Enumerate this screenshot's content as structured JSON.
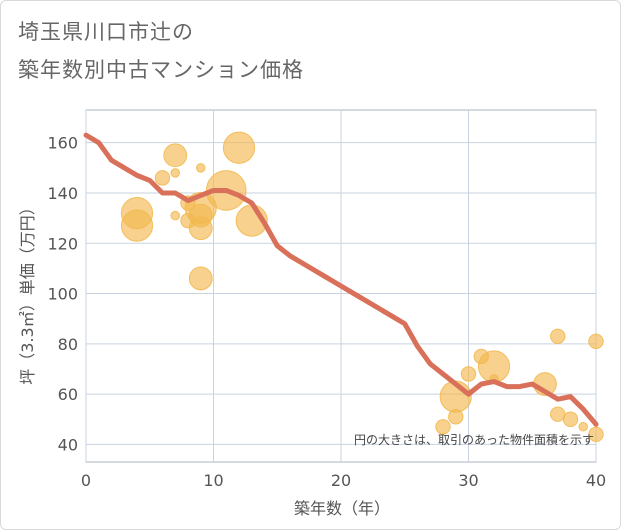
{
  "chart_data": {
    "type": "scatter",
    "title_line1": "埼玉県川口市辻の",
    "title_line2": "築年数別中古マンション価格",
    "xlabel": "築年数（年）",
    "ylabel": "坪（3.3㎡）単価（万円）",
    "xlim": [
      0,
      40
    ],
    "ylim": [
      33,
      173
    ],
    "xticks": [
      0,
      10,
      20,
      30,
      40
    ],
    "yticks": [
      40,
      60,
      80,
      100,
      120,
      140,
      160
    ],
    "grid": true,
    "note": "円の大きさは、取引のあった物件面積を示す",
    "colors": {
      "bubble": "#f2b950",
      "line": "#d9705a",
      "grid": "#c9d3df"
    },
    "bubbles": [
      {
        "x": 4,
        "y": 132,
        "size": 3
      },
      {
        "x": 4,
        "y": 127,
        "size": 3
      },
      {
        "x": 6,
        "y": 146,
        "size": 1
      },
      {
        "x": 7,
        "y": 155,
        "size": 2
      },
      {
        "x": 7,
        "y": 148,
        "size": 0.3
      },
      {
        "x": 7,
        "y": 131,
        "size": 0.3
      },
      {
        "x": 8,
        "y": 129,
        "size": 1
      },
      {
        "x": 8,
        "y": 136,
        "size": 1
      },
      {
        "x": 9,
        "y": 134,
        "size": 3
      },
      {
        "x": 9,
        "y": 131,
        "size": 2
      },
      {
        "x": 9,
        "y": 126,
        "size": 2
      },
      {
        "x": 9,
        "y": 150,
        "size": 0.3
      },
      {
        "x": 9,
        "y": 106,
        "size": 2
      },
      {
        "x": 11,
        "y": 141,
        "size": 4
      },
      {
        "x": 12,
        "y": 158,
        "size": 3
      },
      {
        "x": 13,
        "y": 129,
        "size": 3
      },
      {
        "x": 28,
        "y": 47,
        "size": 1
      },
      {
        "x": 29,
        "y": 59,
        "size": 3
      },
      {
        "x": 29,
        "y": 51,
        "size": 1
      },
      {
        "x": 30,
        "y": 68,
        "size": 1
      },
      {
        "x": 31,
        "y": 75,
        "size": 1
      },
      {
        "x": 32,
        "y": 71,
        "size": 3
      },
      {
        "x": 32,
        "y": 66,
        "size": 0.3
      },
      {
        "x": 36,
        "y": 64,
        "size": 2
      },
      {
        "x": 37,
        "y": 83,
        "size": 1
      },
      {
        "x": 37,
        "y": 52,
        "size": 1
      },
      {
        "x": 38,
        "y": 50,
        "size": 1
      },
      {
        "x": 39,
        "y": 47,
        "size": 0.3
      },
      {
        "x": 40,
        "y": 81,
        "size": 1
      },
      {
        "x": 40,
        "y": 44,
        "size": 1
      }
    ],
    "trend": {
      "x": [
        0,
        1,
        2,
        3,
        4,
        5,
        6,
        7,
        8,
        9,
        10,
        11,
        12,
        13,
        14,
        15,
        16,
        17,
        18,
        19,
        20,
        21,
        22,
        23,
        24,
        25,
        26,
        27,
        28,
        29,
        30,
        31,
        32,
        33,
        34,
        35,
        36,
        37,
        38,
        39,
        40
      ],
      "y": [
        163,
        160,
        153,
        150,
        147,
        145,
        140,
        140,
        137,
        139,
        141,
        141,
        139,
        136,
        128,
        119,
        115,
        112,
        109,
        106,
        103,
        100,
        97,
        94,
        91,
        88,
        79,
        72,
        68,
        64,
        60,
        64,
        65,
        63,
        63,
        64,
        61,
        58,
        59,
        54,
        48
      ]
    }
  }
}
